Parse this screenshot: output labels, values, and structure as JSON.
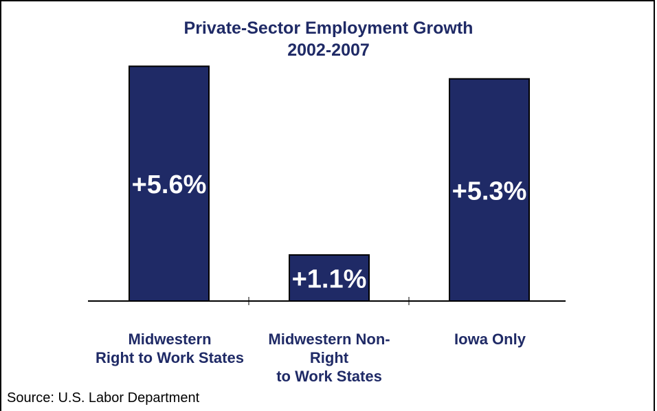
{
  "chart_data": {
    "type": "bar",
    "title": "Private-Sector Employment Growth",
    "subtitle": "2002-2007",
    "categories": [
      [
        "Midwestern",
        "Right to Work States"
      ],
      [
        "Midwestern Non-Right",
        "to Work States"
      ],
      [
        "Iowa Only"
      ]
    ],
    "values": [
      5.6,
      1.1,
      5.3
    ],
    "data_labels": [
      "+5.6%",
      "+1.1%",
      "+5.3%"
    ],
    "ylim": [
      0,
      6
    ],
    "grid": false,
    "bar_color": "#1f2a66",
    "xlabel": "",
    "ylabel": ""
  },
  "source": "Source: U.S. Labor Department"
}
